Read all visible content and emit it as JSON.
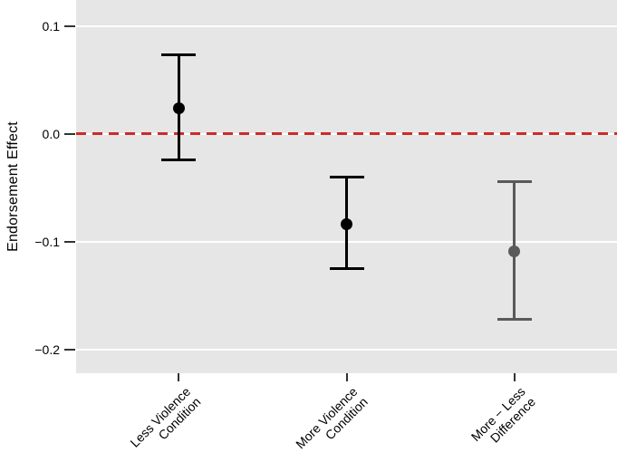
{
  "chart_data": {
    "type": "errorbar",
    "title": "",
    "xlabel": "",
    "ylabel": "Endorsement Effect",
    "categories": [
      [
        "Less Violence",
        "Condition"
      ],
      [
        "More Violence",
        "Condition"
      ],
      [
        "More − Less",
        "Difference"
      ]
    ],
    "points": [
      {
        "label": "Less Violence Condition",
        "estimate": 0.024,
        "ci_low": -0.024,
        "ci_high": 0.073,
        "color": "#000000"
      },
      {
        "label": "More Violence Condition",
        "estimate": -0.084,
        "ci_low": -0.125,
        "ci_high": -0.04,
        "color": "#000000"
      },
      {
        "label": "More − Less Difference",
        "estimate": -0.109,
        "ci_low": -0.172,
        "ci_high": -0.044,
        "color": "#595959"
      }
    ],
    "yticks": {
      "values": [
        0.1,
        0.0,
        -0.1,
        -0.2
      ],
      "labels": [
        "0.1",
        "0.0",
        "−0.1",
        "−0.2"
      ]
    },
    "ylim": [
      -0.222,
      0.124
    ],
    "reference_line": {
      "value": 0.0,
      "style": "dashed",
      "color": "#CC2B2B"
    },
    "panel_background": "#E6E6E6",
    "gridline_color": "#FFFFFF",
    "grid": "major horizontal only",
    "legend": "none"
  }
}
